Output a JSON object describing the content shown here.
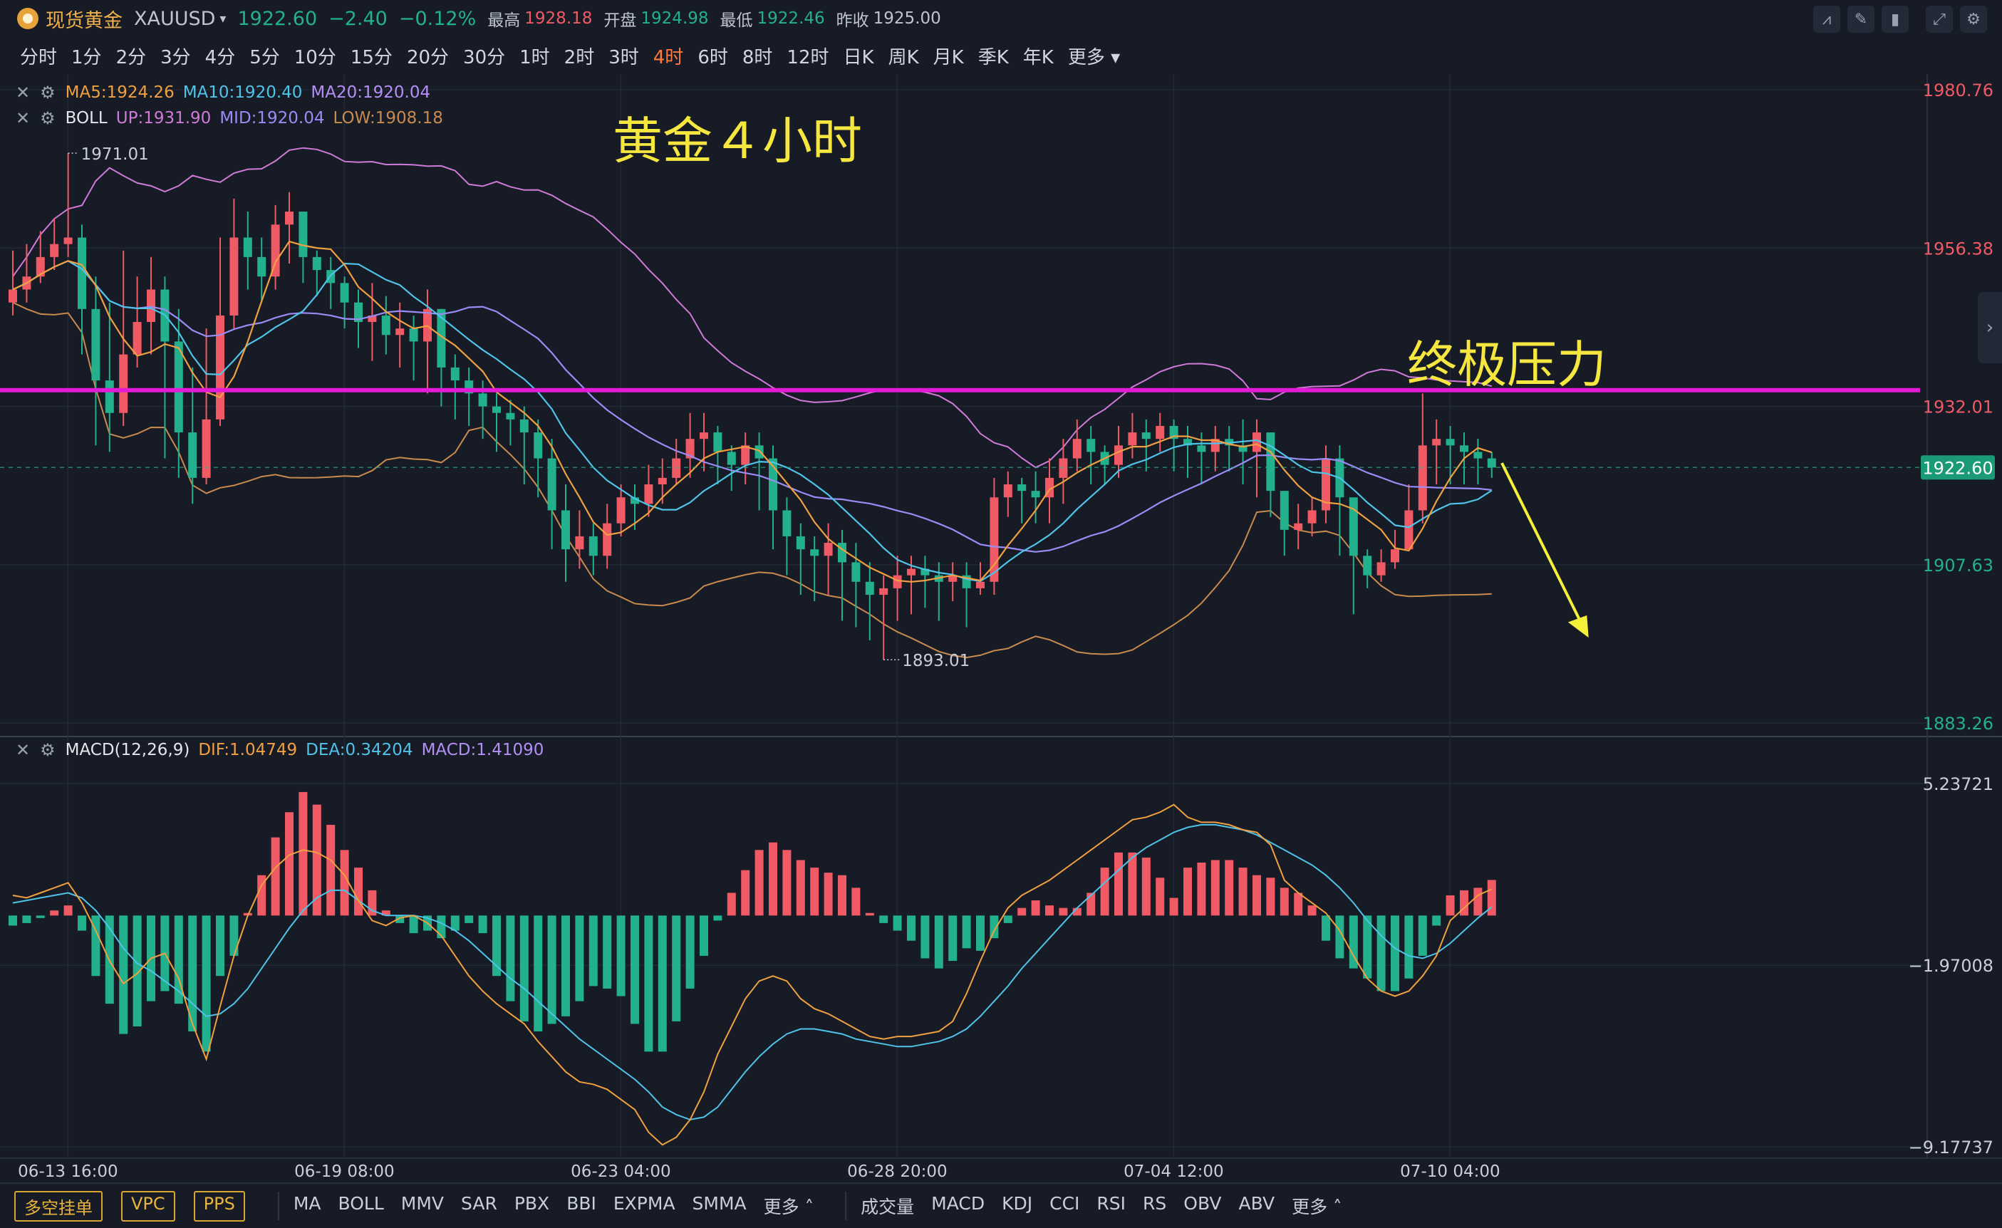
{
  "header": {
    "name": "现货黄金",
    "symbol": "XAUUSD",
    "price": "1922.60",
    "change": "−2.40",
    "change_pct": "−0.12%",
    "high_label": "最高",
    "high": "1928.18",
    "open_label": "开盘",
    "open": "1924.98",
    "low_label": "最低",
    "low": "1922.46",
    "prev_label": "昨收",
    "prev": "1925.00"
  },
  "timeframes": [
    "分时",
    "1分",
    "2分",
    "3分",
    "4分",
    "5分",
    "10分",
    "15分",
    "20分",
    "30分",
    "1时",
    "2时",
    "3时",
    "4时",
    "6时",
    "8时",
    "12时",
    "日K",
    "周K",
    "月K",
    "季K",
    "年K",
    "更多"
  ],
  "active_timeframe": "4时",
  "toolbar_icons": [
    "indicator-icon",
    "draw-icon",
    "candle-style-icon",
    "fullscreen-icon"
  ],
  "legends": {
    "ma": {
      "ma5": "MA5:1924.26",
      "ma10": "MA10:1920.40",
      "ma20": "MA20:1920.04"
    },
    "boll": {
      "name": "BOLL",
      "up": "UP:1931.90",
      "mid": "MID:1920.04",
      "low": "LOW:1908.18"
    },
    "macd": {
      "name": "MACD(12,26,9)",
      "dif": "DIF:1.04749",
      "dea": "DEA:0.34204",
      "macd": "MACD:1.41090"
    }
  },
  "annotations": {
    "title": "黄金４小时",
    "resistance": "终极压力",
    "high_marker": "1971.01",
    "low_marker": "1893.01"
  },
  "bottom": {
    "buttons": [
      "多空挂单",
      "VPC",
      "PPS"
    ],
    "main_indicators": [
      "MA",
      "BOLL",
      "MMV",
      "SAR",
      "PBX",
      "BBI",
      "EXPMA",
      "SMMA",
      "更多"
    ],
    "sub_indicators": [
      "成交量",
      "MACD",
      "KDJ",
      "CCI",
      "RSI",
      "RS",
      "OBV",
      "ABV",
      "更多"
    ]
  },
  "colors": {
    "up": "#f05a65",
    "down": "#22b08d",
    "ma5": "#f0a040",
    "ma10": "#4fc3e8",
    "ma20": "#9a8cf5",
    "boll_up": "#d07ad8",
    "boll_low": "#c98a4e",
    "resistance": "#e41bd6",
    "arrow": "#f5f03a",
    "annot": "#f5e640"
  },
  "chart_data": [
    {
      "type": "candlestick",
      "title": "黄金４小时",
      "x_labels": [
        "06-13 16:00",
        "06-19 08:00",
        "06-23 04:00",
        "06-28 20:00",
        "07-04 12:00",
        "07-10 04:00"
      ],
      "y_ticks": [
        1980.76,
        1956.38,
        1932.01,
        1907.63,
        1883.26
      ],
      "last_price": 1922.6,
      "ylim": [
        1883.26,
        1980.76
      ],
      "resistance_level": 1934.5,
      "closes": [
        1950,
        1952,
        1955,
        1957,
        1958,
        1947,
        1936,
        1931,
        1940,
        1945,
        1950,
        1942,
        1928,
        1921,
        1930,
        1946,
        1958,
        1955,
        1952,
        1960,
        1962,
        1955,
        1953,
        1951,
        1948,
        1945,
        1946,
        1943,
        1944,
        1942,
        1947,
        1938,
        1936,
        1934,
        1932,
        1931,
        1930,
        1928,
        1924,
        1916,
        1910,
        1912,
        1909,
        1914,
        1918,
        1917,
        1920,
        1921,
        1924,
        1927,
        1928,
        1925,
        1923,
        1926,
        1924,
        1916,
        1912,
        1910,
        1909,
        1911,
        1908,
        1905,
        1903,
        1904,
        1906,
        1907,
        1906,
        1905,
        1906,
        1904,
        1905,
        1918,
        1920,
        1919,
        1918,
        1921,
        1924,
        1927,
        1925,
        1923,
        1926,
        1928,
        1927,
        1929,
        1927,
        1926,
        1925,
        1927,
        1926,
        1925,
        1928,
        1919,
        1913,
        1914,
        1916,
        1924,
        1918,
        1909,
        1906,
        1908,
        1910,
        1916,
        1926,
        1927,
        1926,
        1925,
        1924,
        1922.6
      ],
      "highs": [
        1956,
        1957,
        1959,
        1961,
        1971,
        1960,
        1952,
        1948,
        1956,
        1952,
        1955,
        1952,
        1947,
        1938,
        1944,
        1958,
        1964,
        1962,
        1958,
        1963,
        1965,
        1961,
        1956,
        1955,
        1952,
        1950,
        1951,
        1949,
        1948,
        1946,
        1950,
        1947,
        1940,
        1938,
        1936,
        1934,
        1933,
        1932,
        1930,
        1927,
        1920,
        1916,
        1914,
        1917,
        1920,
        1920,
        1923,
        1924,
        1927,
        1931,
        1931,
        1929,
        1926,
        1928,
        1928,
        1926,
        1918,
        1914,
        1912,
        1914,
        1913,
        1911,
        1908,
        1906,
        1909,
        1909,
        1909,
        1908,
        1908,
        1908,
        1908,
        1921,
        1922,
        1921,
        1922,
        1924,
        1927,
        1930,
        1929,
        1926,
        1929,
        1931,
        1930,
        1931,
        1930,
        1929,
        1928,
        1929,
        1929,
        1930,
        1930,
        1926,
        1918,
        1917,
        1918,
        1926,
        1926,
        1916,
        1910,
        1910,
        1913,
        1920,
        1934,
        1930,
        1929,
        1928,
        1927,
        1925
      ],
      "lows": [
        1946,
        1948,
        1951,
        1953,
        1955,
        1940,
        1926,
        1925,
        1929,
        1938,
        1940,
        1924,
        1921,
        1917,
        1920,
        1929,
        1944,
        1950,
        1948,
        1950,
        1954,
        1951,
        1949,
        1947,
        1944,
        1941,
        1939,
        1940,
        1938,
        1936,
        1934,
        1932,
        1930,
        1929,
        1927,
        1925,
        1926,
        1920,
        1918,
        1910,
        1905,
        1907,
        1906,
        1907,
        1912,
        1913,
        1915,
        1917,
        1920,
        1921,
        1922,
        1920,
        1919,
        1920,
        1916,
        1910,
        1906,
        1903,
        1902,
        1903,
        1899,
        1898,
        1896,
        1893,
        1899,
        1900,
        1901,
        1899,
        1902,
        1898,
        1903,
        1903,
        1915,
        1914,
        1914,
        1914,
        1917,
        1922,
        1920,
        1920,
        1921,
        1924,
        1922,
        1925,
        1922,
        1921,
        1920,
        1922,
        1922,
        1920,
        1918,
        1915,
        1909,
        1910,
        1912,
        1914,
        1909,
        1900,
        1904,
        1905,
        1907,
        1910,
        1914,
        1920,
        1920,
        1920,
        1920,
        1921
      ]
    },
    {
      "type": "bar",
      "title": "MACD(12,26,9)",
      "y_ticks": [
        5.23721,
        -1.97008,
        -9.17737
      ],
      "ylim": [
        -9.17737,
        5.23721
      ],
      "macd_hist": [
        -0.4,
        -0.3,
        -0.1,
        0.2,
        0.4,
        -0.6,
        -2.4,
        -3.5,
        -4.7,
        -4.4,
        -3.4,
        -3.0,
        -3.5,
        -4.6,
        -5.4,
        -2.4,
        -1.6,
        0.1,
        1.6,
        3.1,
        4.1,
        4.9,
        4.4,
        3.6,
        2.6,
        1.9,
        1.0,
        0.2,
        -0.3,
        -0.7,
        -0.6,
        -0.9,
        -0.6,
        -0.3,
        -0.7,
        -2.4,
        -3.4,
        -4.2,
        -4.6,
        -4.3,
        -4.0,
        -3.4,
        -2.8,
        -2.9,
        -3.2,
        -4.3,
        -5.4,
        -5.4,
        -4.2,
        -2.9,
        -1.6,
        -0.2,
        0.9,
        1.8,
        2.6,
        2.9,
        2.6,
        2.2,
        1.9,
        1.7,
        1.6,
        1.1,
        0.1,
        -0.3,
        -0.6,
        -1.0,
        -1.7,
        -2.1,
        -1.8,
        -1.3,
        -1.4,
        -0.9,
        -0.3,
        0.3,
        0.6,
        0.4,
        0.3,
        0.3,
        0.9,
        1.9,
        2.5,
        2.5,
        2.3,
        1.5,
        0.7,
        1.9,
        2.1,
        2.2,
        2.2,
        1.9,
        1.6,
        1.5,
        1.1,
        0.9,
        0.4,
        -1.0,
        -1.7,
        -2.1,
        -2.5,
        -3.0,
        -3.0,
        -2.5,
        -1.6,
        -0.4,
        0.8,
        1.0,
        1.1,
        1.41
      ],
      "dif": [
        0.8,
        0.7,
        0.9,
        1.1,
        1.3,
        0.5,
        -0.6,
        -1.8,
        -2.7,
        -2.3,
        -1.7,
        -1.5,
        -2.5,
        -4.3,
        -5.7,
        -3.6,
        -1.6,
        0.0,
        1.2,
        1.9,
        2.4,
        2.6,
        2.5,
        2.2,
        1.6,
        0.6,
        -0.2,
        -0.4,
        -0.1,
        0.0,
        -0.3,
        -0.8,
        -1.6,
        -2.4,
        -3.0,
        -3.5,
        -3.9,
        -4.3,
        -5.0,
        -5.6,
        -6.2,
        -6.6,
        -6.7,
        -6.9,
        -7.3,
        -7.7,
        -8.6,
        -9.1,
        -8.8,
        -8.1,
        -7.0,
        -5.5,
        -4.4,
        -3.3,
        -2.6,
        -2.4,
        -2.6,
        -3.3,
        -3.7,
        -3.9,
        -4.2,
        -4.5,
        -4.8,
        -4.9,
        -4.8,
        -4.8,
        -4.7,
        -4.6,
        -4.2,
        -3.1,
        -1.8,
        -0.6,
        0.3,
        0.8,
        1.1,
        1.4,
        1.8,
        2.2,
        2.6,
        3.0,
        3.4,
        3.8,
        3.9,
        4.1,
        4.4,
        3.9,
        3.7,
        3.7,
        3.6,
        3.4,
        3.3,
        2.8,
        1.4,
        0.9,
        0.5,
        0.1,
        -0.6,
        -1.6,
        -2.5,
        -3.0,
        -3.2,
        -3.0,
        -2.4,
        -1.6,
        -0.2,
        0.3,
        0.8,
        1.05
      ],
      "dea": [
        0.5,
        0.6,
        0.7,
        0.8,
        0.9,
        0.7,
        0.2,
        -0.5,
        -1.3,
        -1.9,
        -2.2,
        -2.6,
        -3.0,
        -3.5,
        -4.0,
        -3.9,
        -3.5,
        -2.9,
        -2.1,
        -1.3,
        -0.5,
        0.2,
        0.7,
        1.0,
        1.0,
        0.6,
        0.2,
        0.0,
        0.0,
        0.0,
        -0.1,
        -0.3,
        -0.6,
        -1.0,
        -1.5,
        -2.0,
        -2.5,
        -2.9,
        -3.4,
        -3.9,
        -4.4,
        -4.9,
        -5.3,
        -5.7,
        -6.1,
        -6.5,
        -7.0,
        -7.6,
        -7.9,
        -8.1,
        -8.0,
        -7.6,
        -6.9,
        -6.2,
        -5.6,
        -5.1,
        -4.7,
        -4.5,
        -4.5,
        -4.6,
        -4.7,
        -4.9,
        -5.0,
        -5.1,
        -5.2,
        -5.2,
        -5.1,
        -5.0,
        -4.8,
        -4.5,
        -4.0,
        -3.4,
        -2.8,
        -2.1,
        -1.5,
        -0.9,
        -0.3,
        0.3,
        0.8,
        1.3,
        1.8,
        2.3,
        2.7,
        3.0,
        3.3,
        3.5,
        3.6,
        3.6,
        3.5,
        3.4,
        3.2,
        2.9,
        2.6,
        2.3,
        2.0,
        1.6,
        1.1,
        0.5,
        -0.2,
        -0.8,
        -1.3,
        -1.6,
        -1.7,
        -1.5,
        -1.1,
        -0.6,
        -0.1,
        0.34
      ]
    }
  ]
}
